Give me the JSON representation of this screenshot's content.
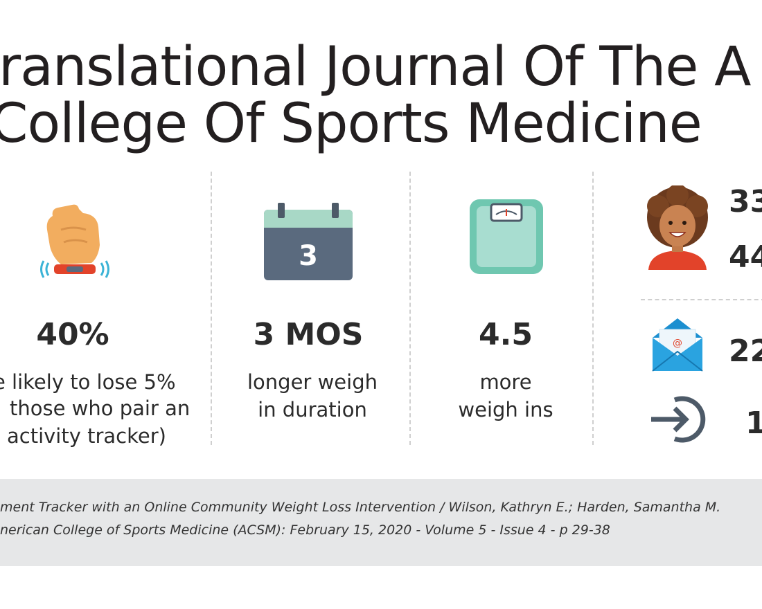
{
  "title": {
    "line1": "ranslational Journal Of The A",
    "line2": "College Of Sports Medicine"
  },
  "stats": [
    {
      "value": "40%",
      "description": [
        "e likely to lose 5%",
        "those who pair an",
        "activity tracker)"
      ],
      "icon": "wrist-activity-tracker-icon"
    },
    {
      "value": "3 MOS",
      "description": [
        "longer weigh",
        "in duration"
      ],
      "icon": "calendar-icon",
      "icon_text": "3"
    },
    {
      "value": "4.5",
      "description": [
        "more",
        "weigh ins"
      ],
      "icon": "bathroom-scale-icon"
    }
  ],
  "right_panel": {
    "avatar_icon": "woman-avatar-icon",
    "numbers": [
      "33",
      "44"
    ],
    "email": {
      "icon": "email-envelope-icon",
      "icon_text": "@",
      "value": "22"
    },
    "login": {
      "icon": "login-arrow-icon",
      "value": "1"
    }
  },
  "citation": {
    "line1": "ment Tracker with an Online Community Weight Loss Intervention / Wilson, Kathryn E.; Harden, Samantha M.",
    "line2": "nerican College of Sports Medicine (ACSM): February 15, 2020 - Volume 5 - Issue 4 - p 29-38"
  },
  "colors": {
    "skin": "#f2ad5f",
    "tracker_band": "#e2432a",
    "tracker_waves": "#3bb3d6",
    "calendar_top": "#a8d8c6",
    "calendar_body": "#5a6a7e",
    "scale_frame": "#6fc7b0",
    "scale_inner": "#a8ddd0",
    "envelope": "#1c8fd0",
    "arrow": "#4d5a68",
    "footer_bg": "#e6e7e8"
  }
}
